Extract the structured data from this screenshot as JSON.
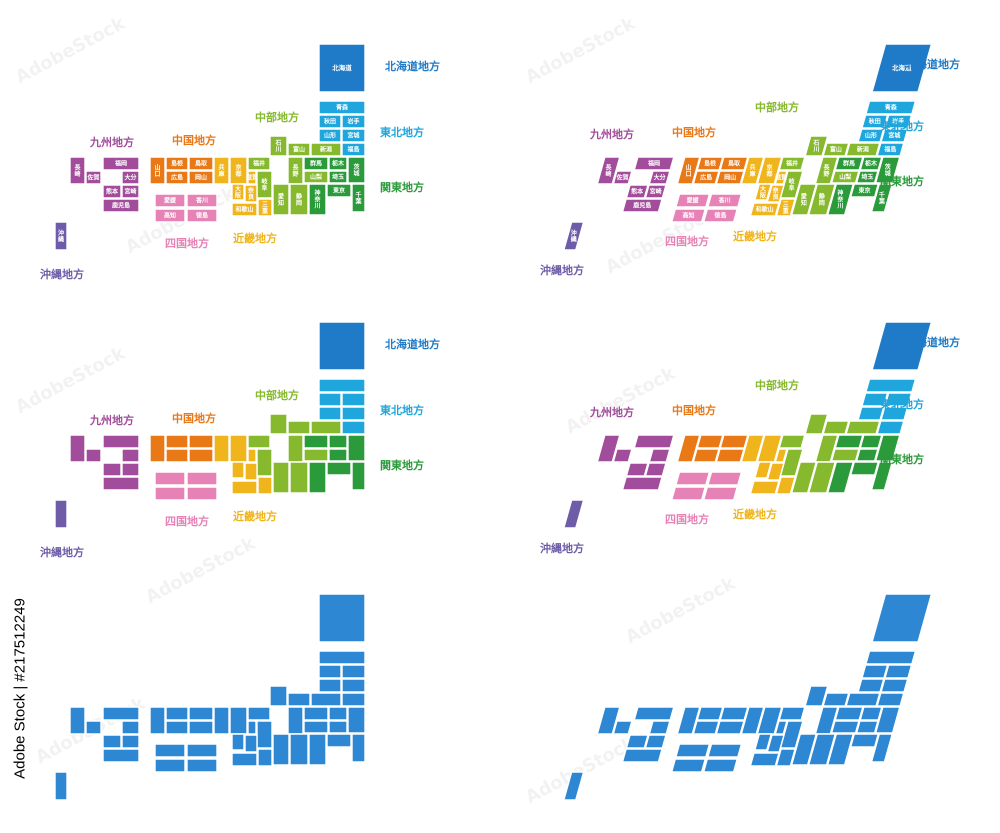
{
  "stock_id": "Adobe Stock | #217512249",
  "watermark": "AdobeStock",
  "region_labels": {
    "hokkaido": "北海道地方",
    "tohoku": "東北地方",
    "kanto": "関東地方",
    "chubu": "中部地方",
    "kinki": "近畿地方",
    "chugoku": "中国地方",
    "shikoku": "四国地方",
    "kyushu": "九州地方",
    "okinawa": "沖縄地方"
  },
  "region_colors": {
    "hokkaido": "#1f7bc7",
    "tohoku": "#1fa6dd",
    "kanto": "#2a9a3a",
    "chubu": "#86b92e",
    "kinki": "#f0b41c",
    "chugoku": "#e97817",
    "shikoku": "#e682b5",
    "kyushu": "#a24d9b",
    "okinawa": "#6e5ca8",
    "mono": "#2d87d3"
  },
  "prefectures": {
    "hokkaido": "北海道",
    "aomori": "青森",
    "akita": "秋田",
    "iwate": "岩手",
    "yamagata": "山形",
    "miyagi": "宮城",
    "fukushima": "福島",
    "ibaraki": "茨城",
    "tochigi": "栃木",
    "gunma": "群馬",
    "saitama": "埼玉",
    "tokyo": "東京",
    "kanagawa": "神奈川",
    "chiba": "千葉",
    "niigata": "新潟",
    "toyama": "富山",
    "ishikawa": "石川",
    "fukui": "福井",
    "nagano": "長野",
    "yamanashi": "山梨",
    "gifu": "岐阜",
    "shizuoka": "静岡",
    "aichi": "愛知",
    "kyoto": "京都",
    "shiga": "滋賀",
    "osaka": "大阪",
    "nara": "奈良",
    "mie": "三重",
    "hyogo": "兵庫",
    "wakayama": "和歌山",
    "tottori": "鳥取",
    "shimane": "島根",
    "okayama": "岡山",
    "hiroshima": "広島",
    "yamaguchi": "山口",
    "kagawa": "香川",
    "tokushima": "徳島",
    "ehime": "愛媛",
    "kochi": "高知",
    "fukuoka": "福岡",
    "saga": "佐賀",
    "nagasaki": "長崎",
    "oita": "大分",
    "kumamoto": "熊本",
    "miyazaki": "宮崎",
    "kagoshima": "鹿児島",
    "okinawa": "沖縄"
  },
  "variants": [
    {
      "name": "labeled-straight",
      "labeled": true,
      "colored": true,
      "skewed": false
    },
    {
      "name": "labeled-skewed",
      "labeled": true,
      "colored": true,
      "skewed": true
    },
    {
      "name": "colored-straight",
      "labeled": false,
      "colored": true,
      "skewed": false
    },
    {
      "name": "colored-skewed",
      "labeled": false,
      "colored": true,
      "skewed": true
    },
    {
      "name": "mono-straight",
      "labeled": false,
      "colored": false,
      "skewed": false
    },
    {
      "name": "mono-skewed",
      "labeled": false,
      "colored": false,
      "skewed": true
    }
  ]
}
